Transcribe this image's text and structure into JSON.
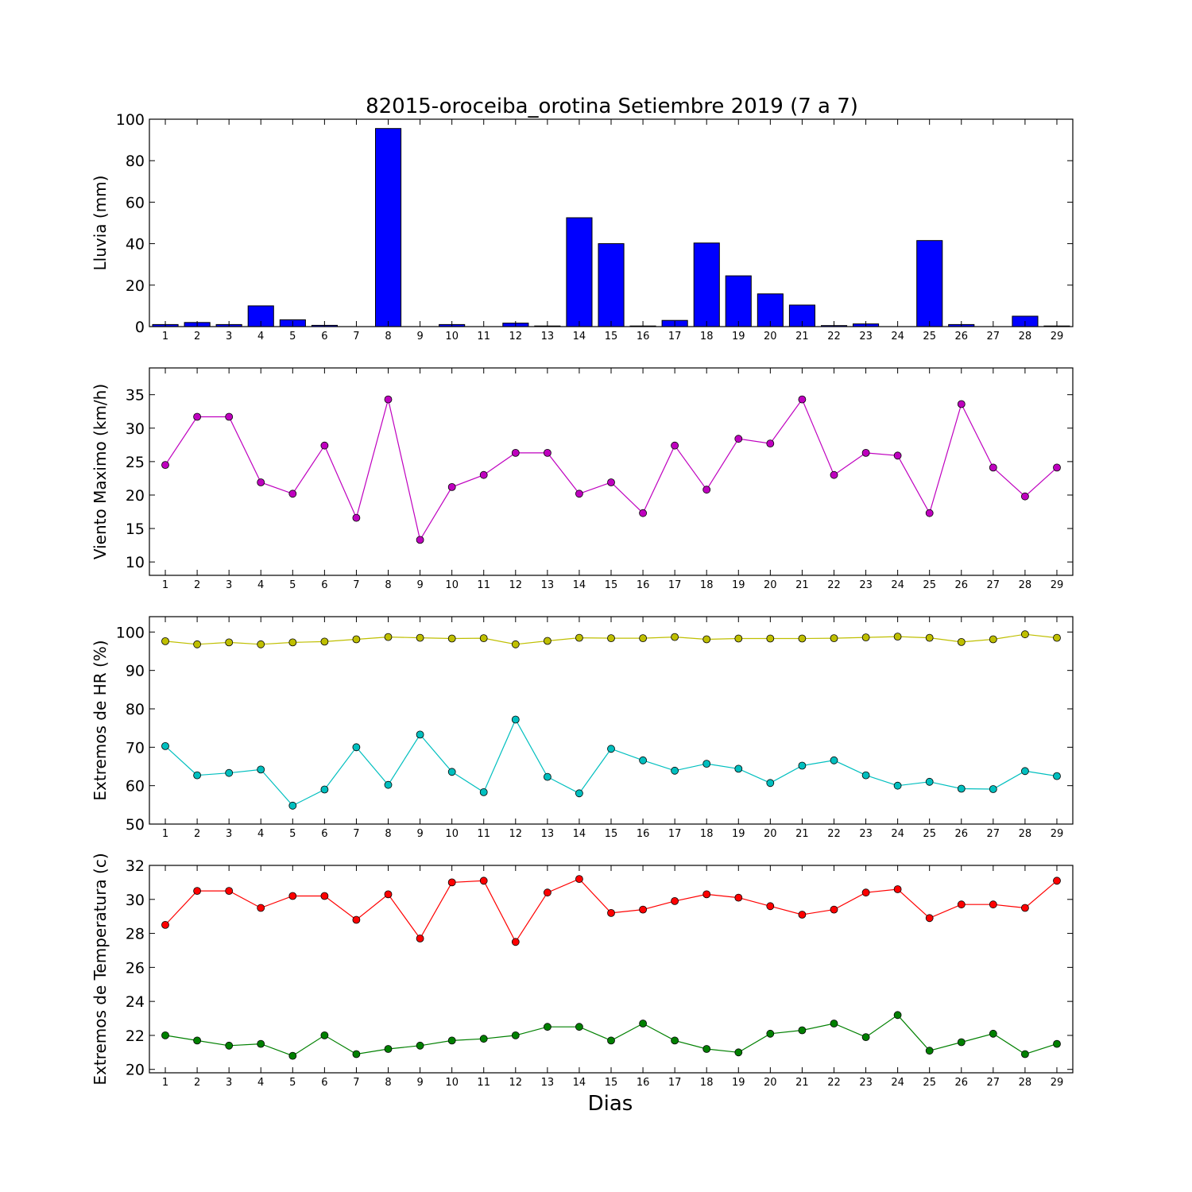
{
  "figure": {
    "title": "82015-oroceiba_orotina Setiembre 2019  (7 a 7)",
    "xlabel": "Dias"
  },
  "chart_data": [
    {
      "type": "bar",
      "name": "lluvia",
      "ylabel": "Lluvia (mm)",
      "ylim": [
        0,
        100
      ],
      "yticks": [
        0,
        20,
        40,
        60,
        80,
        100
      ],
      "xlim": [
        0.5,
        29.5
      ],
      "xticks": [
        1,
        2,
        3,
        4,
        5,
        6,
        7,
        8,
        9,
        10,
        11,
        12,
        13,
        14,
        15,
        16,
        17,
        18,
        19,
        20,
        21,
        22,
        23,
        24,
        25,
        26,
        27,
        28,
        29
      ],
      "grid": false,
      "series": [
        {
          "color": "#0000ff",
          "x": [
            1,
            2,
            3,
            4,
            5,
            6,
            7,
            8,
            9,
            10,
            11,
            12,
            13,
            14,
            15,
            16,
            17,
            18,
            19,
            20,
            21,
            22,
            23,
            24,
            25,
            26,
            27,
            28,
            29
          ],
          "values": [
            1.0,
            2.0,
            1.0,
            10.0,
            3.3,
            0.6,
            0.0,
            95.5,
            0.0,
            1.0,
            0.0,
            1.7,
            0.3,
            52.5,
            40.0,
            0.3,
            3.0,
            40.3,
            24.5,
            15.8,
            10.4,
            0.5,
            1.3,
            0.0,
            41.5,
            1.0,
            0.0,
            5.0,
            0.3
          ]
        }
      ]
    },
    {
      "type": "line",
      "name": "viento",
      "ylabel": "Viento Maximo (km/h)",
      "ylim": [
        8,
        39
      ],
      "yticks": [
        10,
        15,
        20,
        25,
        30,
        35
      ],
      "xlim": [
        0.5,
        29.5
      ],
      "xticks": [
        1,
        2,
        3,
        4,
        5,
        6,
        7,
        8,
        9,
        10,
        11,
        12,
        13,
        14,
        15,
        16,
        17,
        18,
        19,
        20,
        21,
        22,
        23,
        24,
        25,
        26,
        27,
        28,
        29
      ],
      "grid": false,
      "series": [
        {
          "color": "#bf00bf",
          "x": [
            1,
            2,
            3,
            4,
            5,
            6,
            7,
            8,
            9,
            10,
            11,
            12,
            13,
            14,
            15,
            16,
            17,
            18,
            19,
            20,
            21,
            22,
            23,
            24,
            25,
            26,
            27,
            28,
            29
          ],
          "values": [
            24.5,
            31.7,
            31.7,
            21.9,
            20.2,
            27.4,
            16.6,
            34.3,
            13.3,
            21.2,
            23.0,
            26.3,
            26.3,
            20.2,
            21.9,
            17.3,
            27.4,
            20.8,
            28.4,
            27.7,
            34.3,
            23.0,
            26.3,
            25.9,
            17.3,
            33.6,
            24.1,
            19.8,
            24.1
          ]
        }
      ]
    },
    {
      "type": "line",
      "name": "humedad",
      "ylabel": "Extremos de HR (%)",
      "ylim": [
        50,
        104
      ],
      "yticks": [
        50,
        60,
        70,
        80,
        90,
        100
      ],
      "xlim": [
        0.5,
        29.5
      ],
      "xticks": [
        1,
        2,
        3,
        4,
        5,
        6,
        7,
        8,
        9,
        10,
        11,
        12,
        13,
        14,
        15,
        16,
        17,
        18,
        19,
        20,
        21,
        22,
        23,
        24,
        25,
        26,
        27,
        28,
        29
      ],
      "grid": false,
      "series": [
        {
          "color": "#bfbf00",
          "x": [
            1,
            2,
            3,
            4,
            5,
            6,
            7,
            8,
            9,
            10,
            11,
            12,
            13,
            14,
            15,
            16,
            17,
            18,
            19,
            20,
            21,
            22,
            23,
            24,
            25,
            26,
            27,
            28,
            29
          ],
          "values": [
            97.6,
            96.8,
            97.3,
            96.8,
            97.3,
            97.5,
            98.1,
            98.7,
            98.5,
            98.3,
            98.4,
            96.8,
            97.7,
            98.5,
            98.4,
            98.4,
            98.7,
            98.1,
            98.3,
            98.3,
            98.3,
            98.4,
            98.6,
            98.8,
            98.5,
            97.4,
            98.1,
            99.4,
            98.5
          ]
        },
        {
          "color": "#00bfbf",
          "x": [
            1,
            2,
            3,
            4,
            5,
            6,
            7,
            8,
            9,
            10,
            11,
            12,
            13,
            14,
            15,
            16,
            17,
            18,
            19,
            20,
            21,
            22,
            23,
            24,
            25,
            26,
            27,
            28,
            29
          ],
          "values": [
            70.3,
            62.7,
            63.3,
            64.2,
            54.8,
            59.0,
            70.0,
            60.2,
            73.3,
            63.6,
            58.3,
            77.2,
            62.3,
            58.0,
            69.6,
            66.6,
            63.9,
            65.7,
            64.4,
            60.7,
            65.2,
            66.6,
            62.7,
            60.0,
            61.0,
            59.2,
            59.1,
            63.8,
            62.5
          ]
        }
      ]
    },
    {
      "type": "line",
      "name": "temperatura",
      "ylabel": "Extremos de Temperatura (c)",
      "ylim": [
        19.8,
        32
      ],
      "yticks": [
        20,
        22,
        24,
        26,
        28,
        30,
        32
      ],
      "xlim": [
        0.5,
        29.5
      ],
      "xticks": [
        1,
        2,
        3,
        4,
        5,
        6,
        7,
        8,
        9,
        10,
        11,
        12,
        13,
        14,
        15,
        16,
        17,
        18,
        19,
        20,
        21,
        22,
        23,
        24,
        25,
        26,
        27,
        28,
        29
      ],
      "grid": false,
      "series": [
        {
          "color": "#ff0000",
          "x": [
            1,
            2,
            3,
            4,
            5,
            6,
            7,
            8,
            9,
            10,
            11,
            12,
            13,
            14,
            15,
            16,
            17,
            18,
            19,
            20,
            21,
            22,
            23,
            24,
            25,
            26,
            27,
            28,
            29
          ],
          "values": [
            28.5,
            30.5,
            30.5,
            29.5,
            30.2,
            30.2,
            28.8,
            30.3,
            27.7,
            31.0,
            31.1,
            27.5,
            30.4,
            31.2,
            29.2,
            29.4,
            29.9,
            30.3,
            30.1,
            29.6,
            29.1,
            29.4,
            30.4,
            30.6,
            28.9,
            29.7,
            29.7,
            29.5,
            31.1
          ]
        },
        {
          "color": "#008000",
          "x": [
            1,
            2,
            3,
            4,
            5,
            6,
            7,
            8,
            9,
            10,
            11,
            12,
            13,
            14,
            15,
            16,
            17,
            18,
            19,
            20,
            21,
            22,
            23,
            24,
            25,
            26,
            27,
            28,
            29
          ],
          "values": [
            22.0,
            21.7,
            21.4,
            21.5,
            20.8,
            22.0,
            20.9,
            21.2,
            21.4,
            21.7,
            21.8,
            22.0,
            22.5,
            22.5,
            21.7,
            22.7,
            21.7,
            21.2,
            21.0,
            22.1,
            22.3,
            22.7,
            21.9,
            23.2,
            21.1,
            21.6,
            22.1,
            20.9,
            21.5
          ]
        }
      ]
    }
  ]
}
